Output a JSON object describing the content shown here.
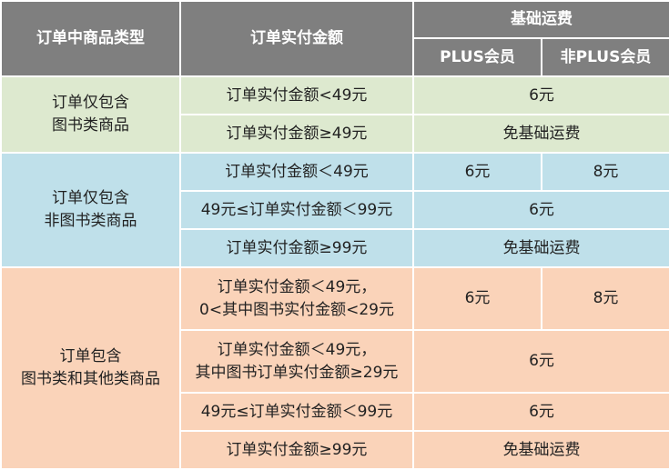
{
  "header": {
    "product_type": "订单中商品类型",
    "amount": "订单实付金额",
    "base_shipping": "基础运费",
    "plus": "PLUS会员",
    "non_plus": "非PLUS会员"
  },
  "groups": [
    {
      "category_lines": [
        "订单仅包含",
        "图书类商品"
      ],
      "rows": [
        {
          "amount_lines": [
            "订单实付金额<49元"
          ],
          "fee": "6元"
        },
        {
          "amount_lines": [
            "订单实付金额≥49元"
          ],
          "fee": "免基础运费"
        }
      ]
    },
    {
      "category_lines": [
        "订单仅包含",
        "非图书类商品"
      ],
      "rows": [
        {
          "amount_lines": [
            "订单实付金额＜49元"
          ],
          "plus_fee": "6元",
          "non_plus_fee": "8元"
        },
        {
          "amount_lines": [
            "49元≤订单实付金额＜99元"
          ],
          "fee": "6元"
        },
        {
          "amount_lines": [
            "订单实付金额≥99元"
          ],
          "fee": "免基础运费"
        }
      ]
    },
    {
      "category_lines": [
        "订单包含",
        "图书类和其他类商品"
      ],
      "rows": [
        {
          "amount_lines": [
            "订单实付金额＜49元，",
            "0<其中图书实付金额<29元"
          ],
          "plus_fee": "6元",
          "non_plus_fee": "8元"
        },
        {
          "amount_lines": [
            "订单实付金额＜49元，",
            "其中图书订单实付金额≥29元"
          ],
          "fee": "6元"
        },
        {
          "amount_lines": [
            "49元≤订单实付金额＜99元"
          ],
          "fee": "6元"
        },
        {
          "amount_lines": [
            "订单实付金额≥99元"
          ],
          "fee": "免基础运费"
        }
      ]
    }
  ],
  "colors": {
    "header_bg": "#7f7f7f",
    "group1_bg": "#dde9cf",
    "group2_bg": "#bfe0ea",
    "group3_bg": "#fad3b9"
  }
}
